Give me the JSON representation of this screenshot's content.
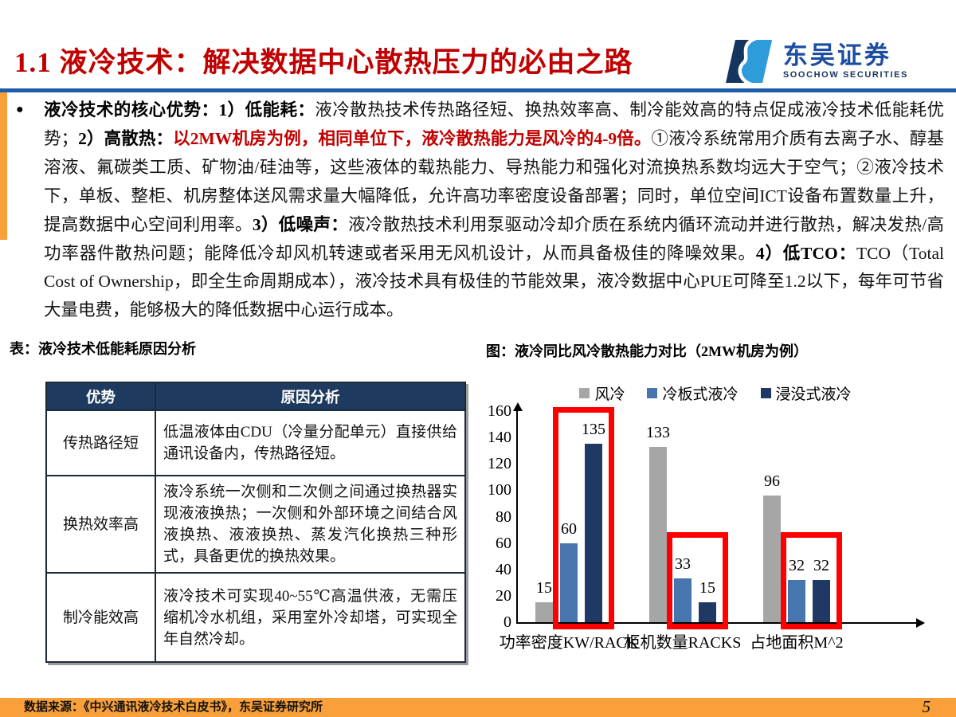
{
  "header": {
    "title": "1.1 液冷技术：解决数据中心散热压力的必由之路",
    "logo_cn": "东吴证券",
    "logo_en": "SOOCHOW SECURITIES"
  },
  "paragraph": {
    "bullet": "●",
    "segments": [
      {
        "text": "液冷技术的核心优势：1）低能耗：",
        "style": "bold"
      },
      {
        "text": "液冷散热技术传热路径短、换热效率高、制冷能效高的特点促成液冷技术低能耗优势；",
        "style": "regular"
      },
      {
        "text": "2）高散热：",
        "style": "bold"
      },
      {
        "text": "以2MW机房为例，相同单位下，液冷散热能力是风冷的4-9倍。",
        "style": "red-bold"
      },
      {
        "text": "①液冷系统常用介质有去离子水、醇基溶液、氟碳类工质、矿物油/硅油等，这些液体的载热能力、导热能力和强化对流换热系数均远大于空气；②液冷技术下，单板、整柜、机房整体送风需求量大幅降低，允许高功率密度设备部署；同时，单位空间ICT设备布置数量上升，提高数据中心空间利用率。",
        "style": "regular"
      },
      {
        "text": "3）低噪声：",
        "style": "bold"
      },
      {
        "text": "液冷散热技术利用泵驱动冷却介质在系统内循环流动并进行散热，解决发热/高功率器件散热问题；能降低冷却风机转速或者采用无风机设计，从而具备极佳的降噪效果。",
        "style": "regular"
      },
      {
        "text": "4）低TCO：",
        "style": "bold"
      },
      {
        "text": "TCO（Total Cost of Ownership，即全生命周期成本），液冷技术具有极佳的节能效果，液冷数据中心PUE可降至1.2以下，每年可节省大量电费，能够极大的降低数据中心运行成本。",
        "style": "regular"
      }
    ]
  },
  "table_section": {
    "caption": "表：液冷技术低能耗原因分析",
    "columns": [
      "优势",
      "原因分析"
    ],
    "rows": [
      {
        "advantage": "传热路径短",
        "analysis": "低温液体由CDU（冷量分配单元）直接供给通讯设备内，传热路径短。"
      },
      {
        "advantage": "换热效率高",
        "analysis": "液冷系统一次侧和二次侧之间通过换热器实现液液换热；一次侧和外部环境之间结合风液换热、液液换热、蒸发汽化换热三种形式，具备更优的换热效果。"
      },
      {
        "advantage": "制冷能效高",
        "analysis": "液冷技术可实现40~55℃高温供液，无需压缩机冷水机组，采用室外冷却塔，可实现全年自然冷却。"
      }
    ]
  },
  "chart_section": {
    "caption": "图：液冷同比风冷散热能力对比（2MW机房为例）"
  },
  "chart_data": {
    "type": "bar",
    "categories": [
      "功率密度KW/RACK",
      "柜机数量RACKS",
      "占地面积M^2"
    ],
    "series": [
      {
        "name": "风冷",
        "color": "#A6A6A6",
        "values": [
          15,
          133,
          96
        ]
      },
      {
        "name": "冷板式液冷",
        "color": "#4775AE",
        "values": [
          60,
          33,
          32
        ]
      },
      {
        "name": "浸没式液冷",
        "color": "#1F3864",
        "values": [
          135,
          15,
          32
        ]
      }
    ],
    "title": "",
    "xlabel": "",
    "ylabel": "",
    "ylim": [
      0,
      160
    ],
    "ytick_step": 20,
    "grid": false,
    "legend_position": "top",
    "highlight_color": "#FF0000",
    "highlights": [
      {
        "category_index": 0,
        "series_indexes": [
          1,
          2
        ],
        "top_value": 163
      },
      {
        "category_index": 1,
        "series_indexes": [
          1,
          2
        ],
        "top_value": 68
      },
      {
        "category_index": 2,
        "series_indexes": [
          1,
          2
        ],
        "top_value": 68
      }
    ]
  },
  "footer": {
    "source": "数据来源：《中兴通讯液冷技术白皮书》，东吴证券研究所",
    "page": "5"
  },
  "colors": {
    "title_red": "#C00000",
    "divider_blue": "#1C5CA8",
    "accent_orange": "#F9A03A",
    "table_header_navy": "#1F3A5F",
    "logo_navy": "#16355E",
    "logo_azure": "#2E9BDB"
  }
}
